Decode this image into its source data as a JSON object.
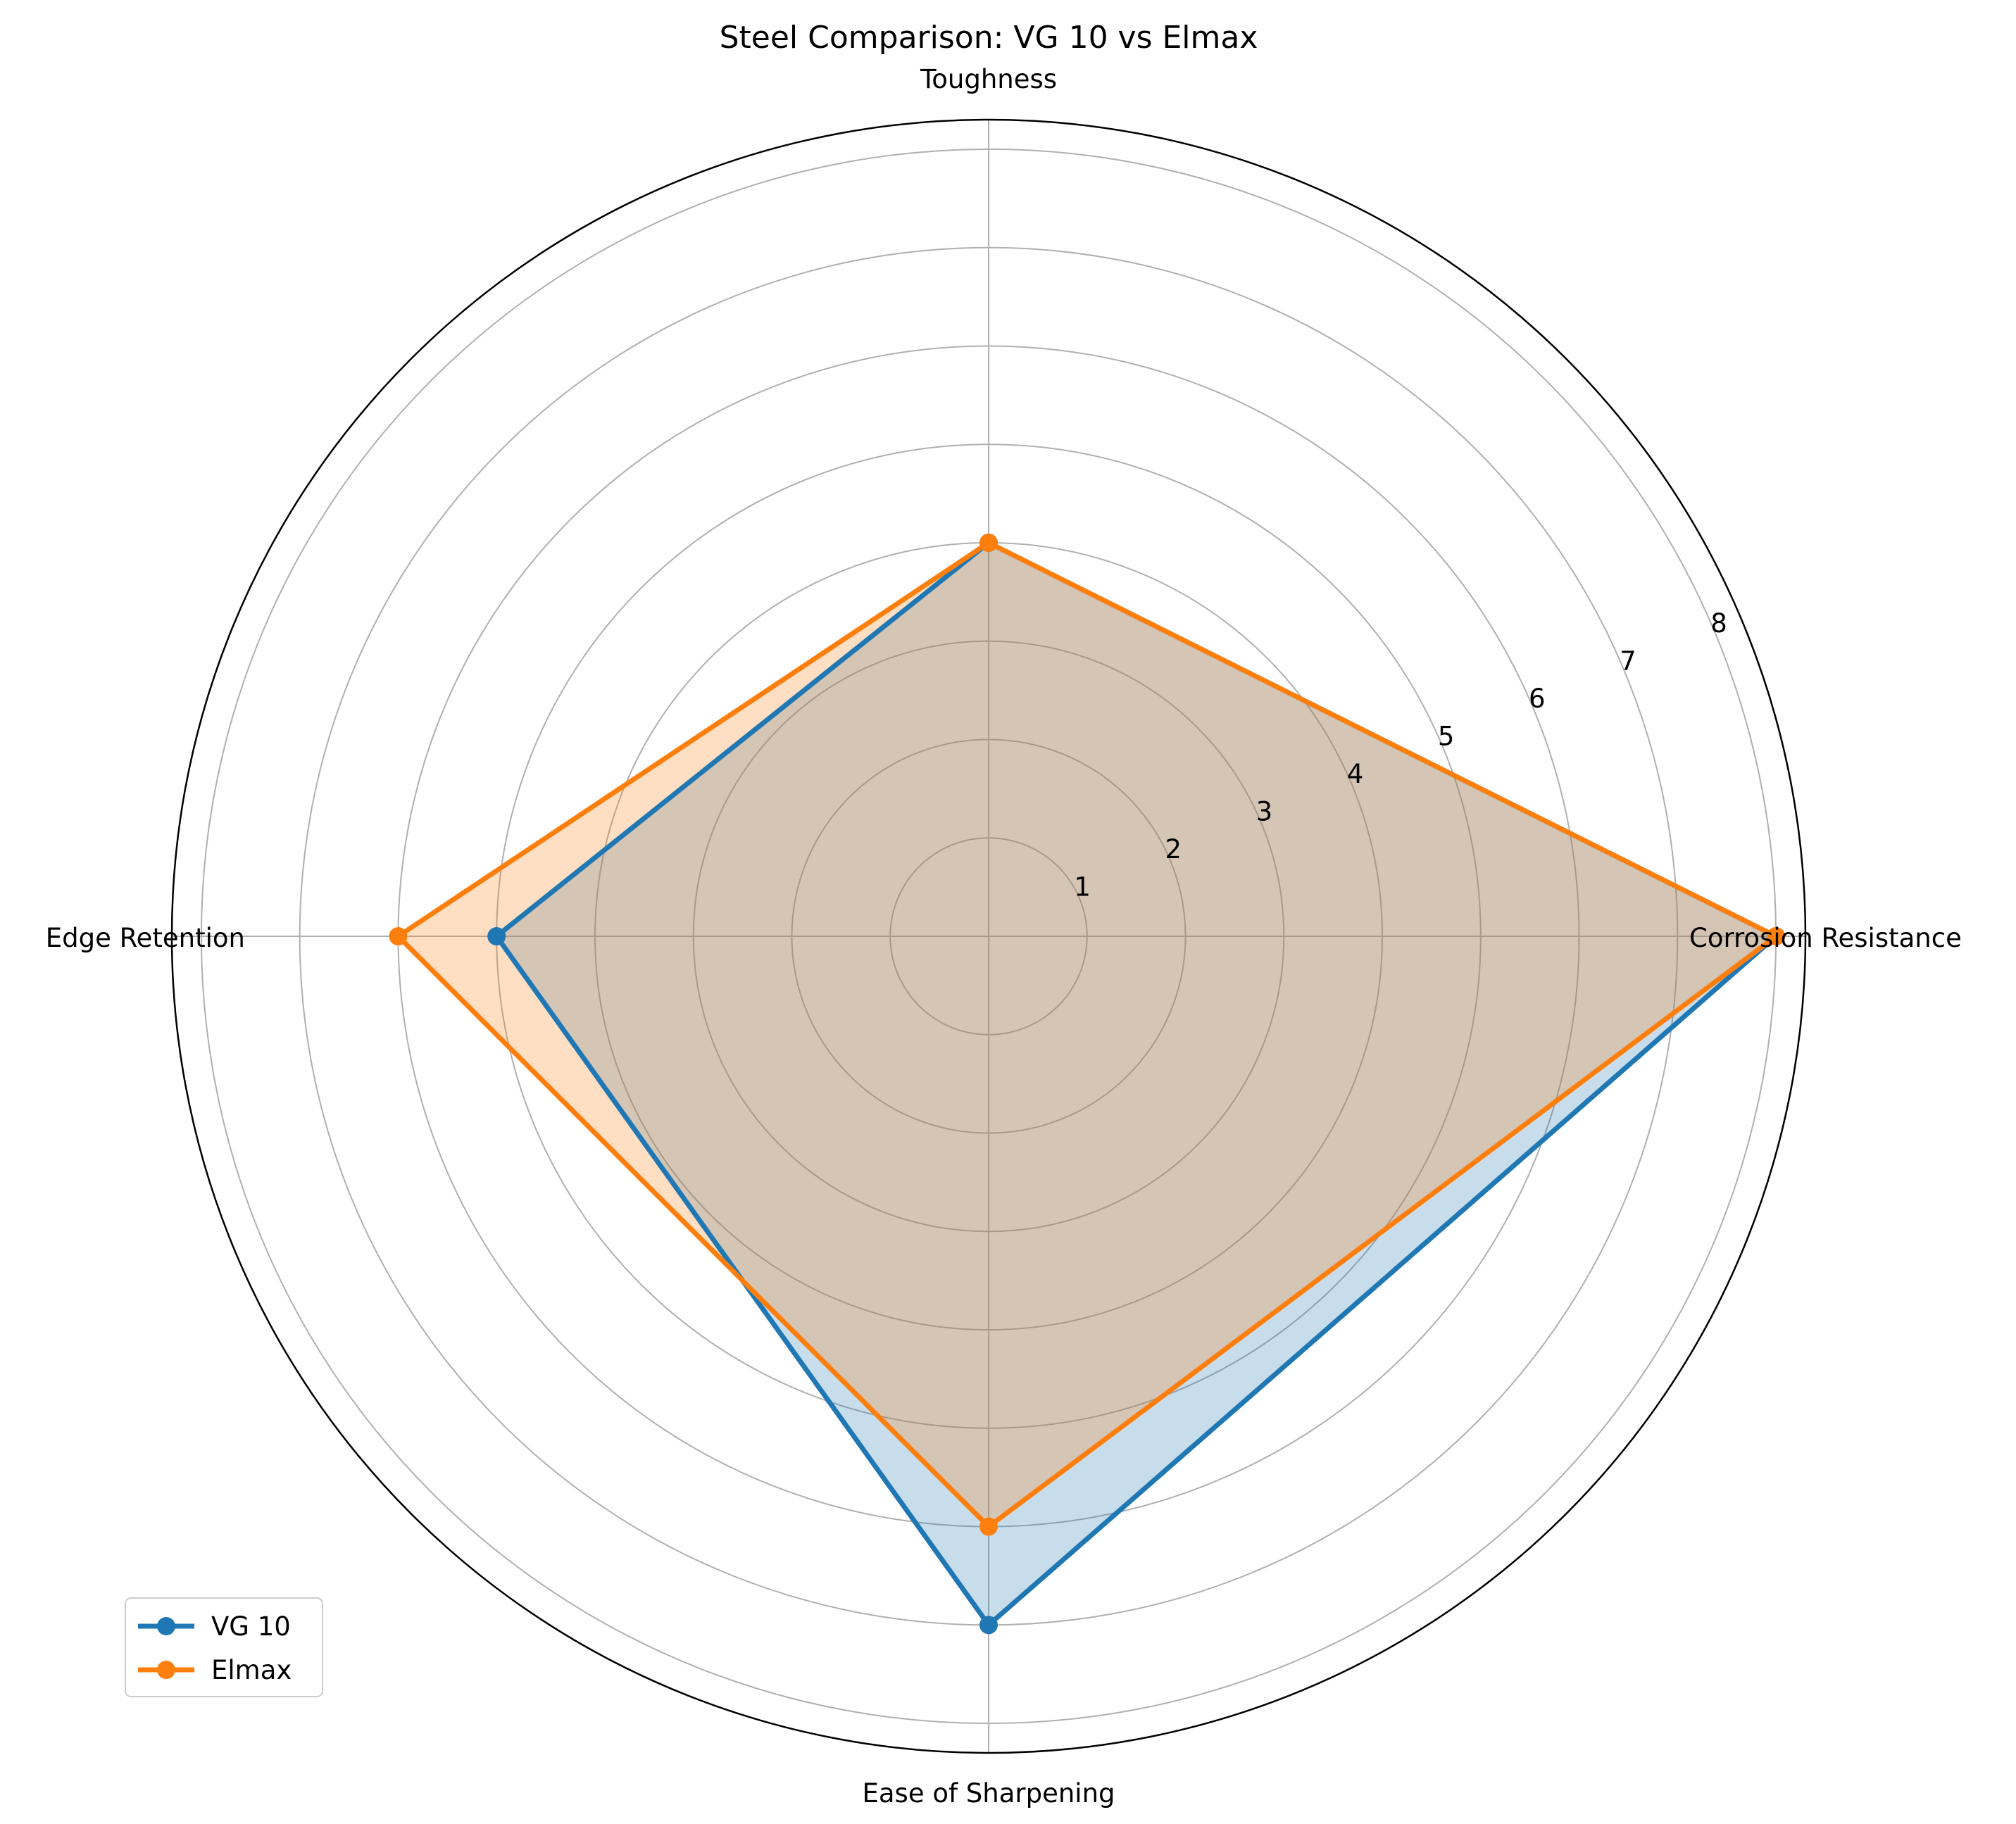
{
  "chart_data": {
    "type": "radar",
    "title": "Steel Comparison: VG 10 vs Elmax",
    "axes": [
      "Corrosion Resistance",
      "Toughness",
      "Edge Retention",
      "Ease of Sharpening"
    ],
    "rlim": [
      0,
      8.3
    ],
    "r_ticks": [
      1,
      2,
      3,
      4,
      5,
      6,
      7,
      8
    ],
    "r_tick_labels": [
      "1",
      "2",
      "3",
      "4",
      "5",
      "6",
      "7",
      "8"
    ],
    "grid": true,
    "legend_position": "lower-left",
    "series": [
      {
        "name": "VG 10",
        "values": [
          8,
          4,
          5,
          7
        ],
        "color": "#1f77b4"
      },
      {
        "name": "Elmax",
        "values": [
          8,
          4,
          6,
          6
        ],
        "color": "#ff7f0e"
      }
    ]
  }
}
